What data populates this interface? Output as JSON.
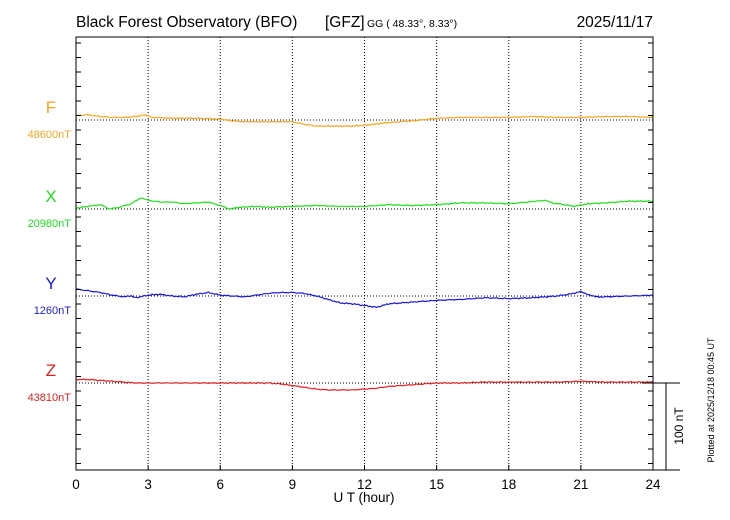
{
  "chart_data": {
    "type": "line",
    "title": "Black Forest Observatory (BFO)",
    "institute": "[GFZ]",
    "coord_label": "GG ( 48.33°,   8.33°)",
    "date": "2025/11/17",
    "xlabel": "U T (hour)",
    "xlim": [
      0,
      24
    ],
    "x_ticks": [
      "0",
      "3",
      "6",
      "9",
      "12",
      "15",
      "18",
      "21",
      "24"
    ],
    "scale_label": "100 nT",
    "plot_note": "Plotted at 2025/12/18 00:45 UT",
    "units_per_series_offset": "nT",
    "series": [
      {
        "name": "F",
        "baseline_label": "48600nT",
        "baseline": 48600,
        "color": "#f5a623",
        "x": [
          0,
          0.5,
          1,
          1.5,
          2,
          2.5,
          2.8,
          3.2,
          4,
          5,
          6,
          6.5,
          7,
          8,
          9,
          9.5,
          10,
          10.5,
          11,
          11.5,
          12,
          13,
          14,
          15,
          16,
          17,
          18,
          19,
          20,
          21,
          22,
          23,
          24
        ],
        "values": [
          48605,
          48606,
          48604,
          48603,
          48603,
          48604,
          48606,
          48603,
          48602,
          48602,
          48601,
          48599,
          48598,
          48598,
          48598,
          48595,
          48593,
          48593,
          48593,
          48593,
          48594,
          48597,
          48599,
          48602,
          48603,
          48603,
          48603,
          48604,
          48603,
          48603,
          48604,
          48604,
          48603
        ]
      },
      {
        "name": "X",
        "baseline_label": "20980nT",
        "baseline": 20980,
        "color": "#22dd22",
        "x": [
          0,
          0.5,
          1,
          1.4,
          1.8,
          2.3,
          2.7,
          3,
          3.5,
          4,
          4.5,
          5,
          5.5,
          6,
          6.4,
          6.8,
          7.5,
          8,
          9,
          10,
          11,
          12,
          13,
          14,
          15,
          16,
          17,
          18,
          18.8,
          19.5,
          19.8,
          20.3,
          20.7,
          21.3,
          22,
          23,
          24
        ],
        "values": [
          20981,
          20983,
          20985,
          20980,
          20982,
          20986,
          20993,
          20990,
          20988,
          20988,
          20986,
          20987,
          20988,
          20984,
          20980,
          20982,
          20983,
          20982,
          20983,
          20984,
          20983,
          20983,
          20985,
          20984,
          20985,
          20987,
          20987,
          20986,
          20988,
          20990,
          20987,
          20985,
          20983,
          20986,
          20987,
          20989,
          20989
        ]
      },
      {
        "name": "Y",
        "baseline_label": "1260nT",
        "baseline": 1260,
        "color": "#1a1ad0",
        "x": [
          0,
          0.5,
          1,
          1.5,
          2,
          2.3,
          2.5,
          3,
          3.5,
          4,
          4.5,
          5,
          5.5,
          6,
          7,
          8,
          8.5,
          9,
          9.5,
          10,
          10.5,
          11,
          11.5,
          12,
          12.5,
          13,
          14,
          15,
          16,
          17,
          18,
          19,
          20,
          20.5,
          21,
          21.3,
          21.6,
          22,
          23,
          24
        ],
        "values": [
          1268,
          1266,
          1264,
          1261,
          1259,
          1260,
          1258,
          1261,
          1262,
          1260,
          1259,
          1262,
          1264,
          1261,
          1259,
          1263,
          1264,
          1264,
          1263,
          1260,
          1256,
          1252,
          1251,
          1249,
          1247,
          1251,
          1253,
          1255,
          1256,
          1258,
          1257,
          1258,
          1260,
          1262,
          1265,
          1262,
          1259,
          1259,
          1260,
          1261
        ]
      },
      {
        "name": "Z",
        "baseline_label": "43810nT",
        "baseline": 43810,
        "color": "#dd2222",
        "x": [
          0,
          0.5,
          1,
          1.5,
          2,
          2.5,
          3,
          4,
          5,
          6,
          7,
          8,
          8.5,
          9,
          9.5,
          10,
          10.5,
          11,
          11.5,
          12,
          12.5,
          13,
          14,
          15,
          16,
          17,
          18,
          19,
          20,
          21,
          22,
          23,
          24
        ],
        "values": [
          43814,
          43814,
          43813,
          43812,
          43811,
          43810,
          43810,
          43810,
          43810,
          43810,
          43810,
          43810,
          43809,
          43807,
          43805,
          43803,
          43802,
          43802,
          43802,
          43803,
          43804,
          43806,
          43808,
          43810,
          43810,
          43811,
          43811,
          43811,
          43811,
          43812,
          43811,
          43811,
          43811
        ]
      }
    ]
  }
}
